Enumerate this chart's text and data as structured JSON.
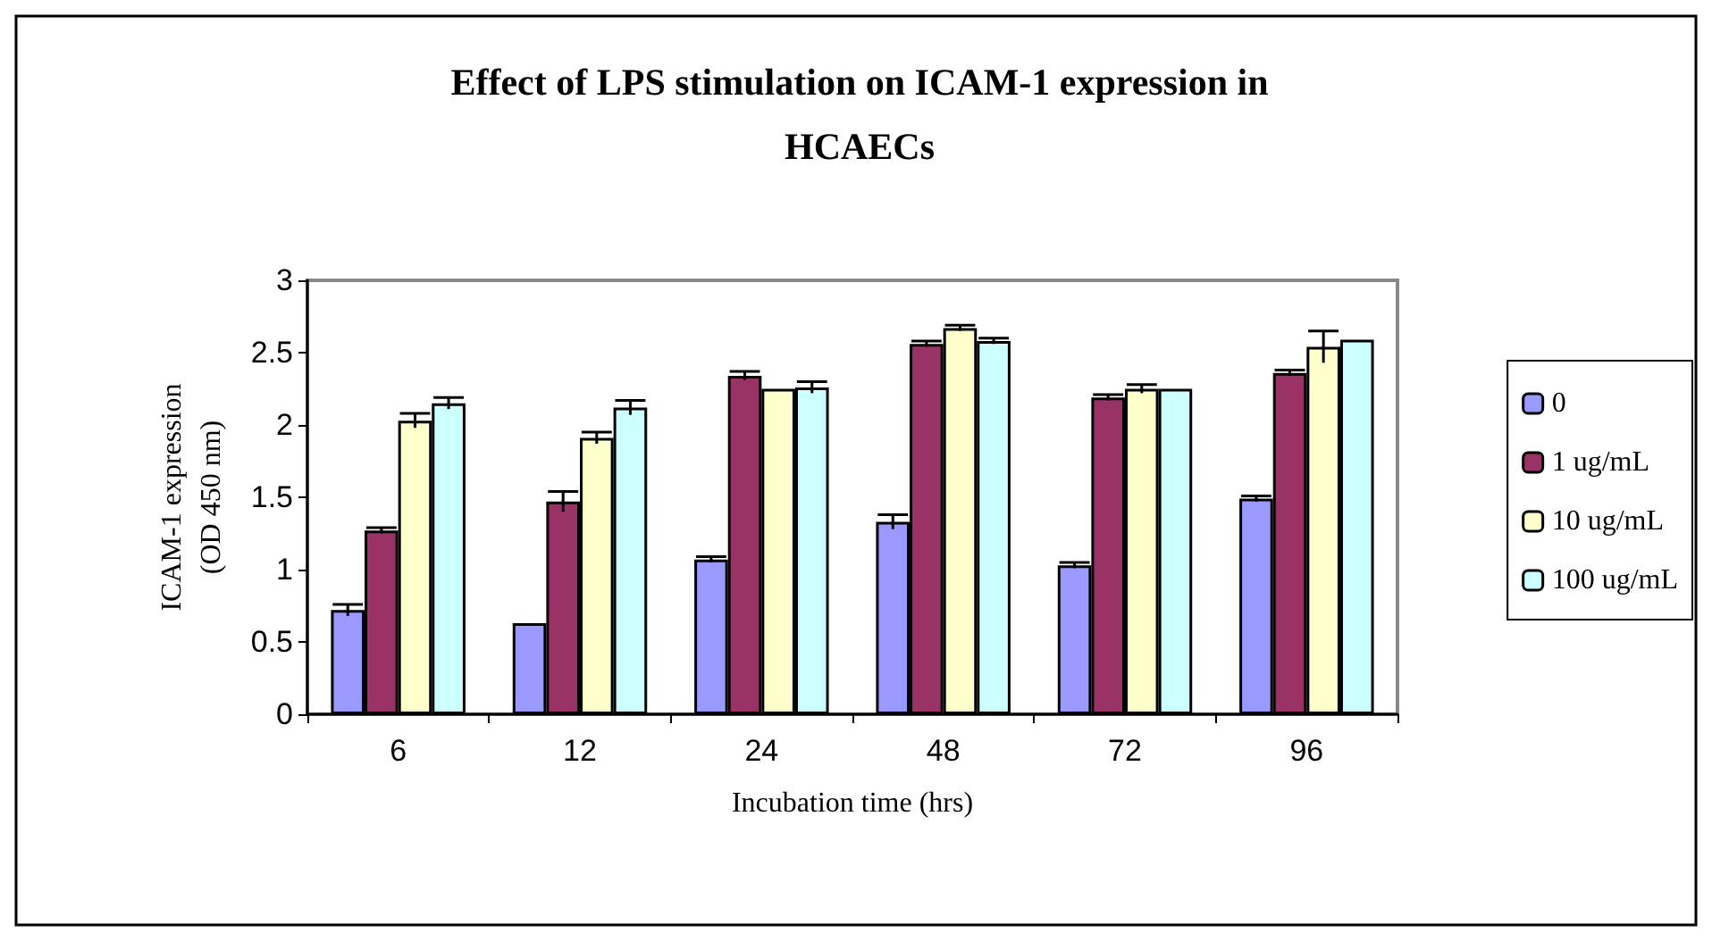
{
  "chart_data": {
    "type": "bar",
    "title": "Effect of LPS stimulation on ICAM-1 expression in\nHCAECs",
    "xlabel": "Incubation time (hrs)",
    "ylabel": "ICAM-1 expression\n(OD 450 nm)",
    "categories": [
      "6",
      "12",
      "24",
      "48",
      "72",
      "96"
    ],
    "series": [
      {
        "name": "0",
        "color": "#9999ff",
        "values": [
          0.72,
          0.63,
          1.07,
          1.33,
          1.03,
          1.49
        ],
        "errors": [
          0.04,
          null,
          0.02,
          0.05,
          0.02,
          0.02
        ]
      },
      {
        "name": "1 ug/mL",
        "color": "#993366",
        "values": [
          1.27,
          1.47,
          2.34,
          2.56,
          2.19,
          2.36
        ],
        "errors": [
          0.02,
          0.07,
          0.03,
          0.02,
          0.02,
          0.02
        ]
      },
      {
        "name": "10 ug/mL",
        "color": "#ffffcc",
        "values": [
          2.03,
          1.91,
          2.25,
          2.67,
          2.25,
          2.54
        ],
        "errors": [
          0.05,
          0.04,
          null,
          0.02,
          0.03,
          0.11
        ]
      },
      {
        "name": "100 ug/mL",
        "color": "#ccffff",
        "values": [
          2.15,
          2.12,
          2.26,
          2.58,
          2.25,
          2.59
        ],
        "errors": [
          0.04,
          0.05,
          0.04,
          0.02,
          null,
          null
        ]
      }
    ],
    "ylim": [
      0,
      3
    ],
    "yticks": [
      0,
      0.5,
      1,
      1.5,
      2,
      2.5,
      3
    ],
    "grid": false,
    "legend": "right"
  }
}
